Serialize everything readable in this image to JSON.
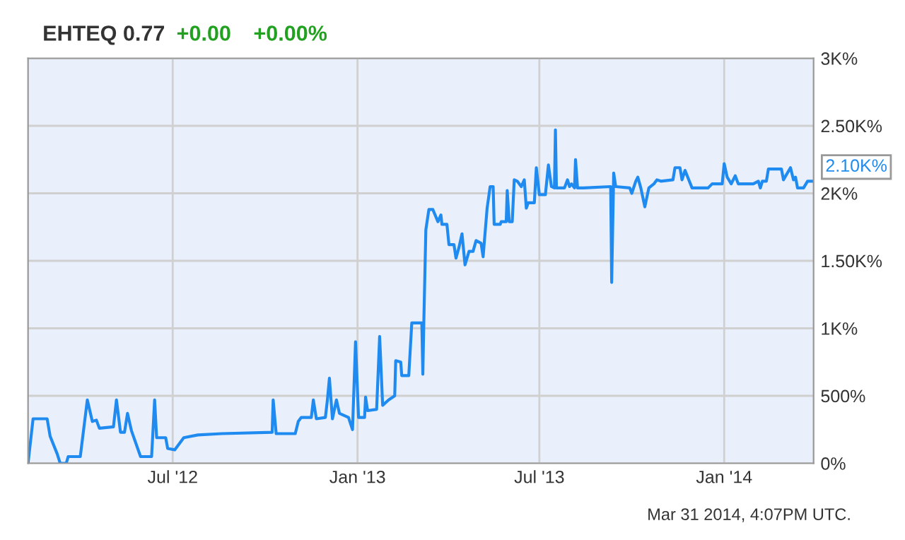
{
  "chart_data": {
    "type": "line",
    "title": "EHTEQ 0.77",
    "annotations": [
      "+0.00",
      "+0.00%",
      "Mar 31 2014, 4:07PM UTC.",
      {
        "text": "2.10K%",
        "x": "2014-03-31",
        "y": 2090
      }
    ],
    "series": [
      {
        "color": "#1f8bf0",
        "x": [
          "2012-02-08",
          "2012-02-13",
          "2012-02-27",
          "2012-03-01",
          "2012-03-08",
          "2012-03-11",
          "2012-03-17",
          "2012-03-19",
          "2012-03-31",
          "2012-04-07",
          "2012-04-12",
          "2012-04-16",
          "2012-04-19",
          "2012-05-03",
          "2012-05-06",
          "2012-05-10",
          "2012-05-14",
          "2012-05-17",
          "2012-05-21",
          "2012-05-30",
          "2012-06-10",
          "2012-06-13",
          "2012-06-15",
          "2012-06-24",
          "2012-06-26",
          "2012-07-03",
          "2012-07-12",
          "2012-07-26",
          "2012-08-19",
          "2012-10-08",
          "2012-10-09",
          "2012-10-12",
          "2012-10-31",
          "2012-11-03",
          "2012-11-06",
          "2012-11-16",
          "2012-11-18",
          "2012-11-21",
          "2012-11-30",
          "2012-12-02",
          "2012-12-04",
          "2012-12-07",
          "2012-12-11",
          "2012-12-14",
          "2012-12-23",
          "2012-12-27",
          "2012-12-30",
          "2013-01-02",
          "2013-01-08",
          "2013-01-09",
          "2013-01-11",
          "2013-01-20",
          "2013-01-23",
          "2013-01-26",
          "2013-02-01",
          "2013-02-07",
          "2013-02-08",
          "2013-02-13",
          "2013-02-14",
          "2013-02-21",
          "2013-02-24",
          "2013-03-06",
          "2013-03-07",
          "2013-03-08",
          "2013-03-10",
          "2013-03-13",
          "2013-03-17",
          "2013-03-22",
          "2013-03-25",
          "2013-03-26",
          "2013-03-31",
          "2013-04-02",
          "2013-04-07",
          "2013-04-09",
          "2013-04-12",
          "2013-04-15",
          "2013-04-18",
          "2013-04-22",
          "2013-04-26",
          "2013-04-29",
          "2013-05-04",
          "2013-05-06",
          "2013-05-10",
          "2013-05-13",
          "2013-05-16",
          "2013-05-17",
          "2013-05-23",
          "2013-05-24",
          "2013-05-29",
          "2013-05-30",
          "2013-06-01",
          "2013-06-04",
          "2013-06-06",
          "2013-06-09",
          "2013-06-13",
          "2013-06-16",
          "2013-06-18",
          "2013-06-20",
          "2013-06-26",
          "2013-06-28",
          "2013-07-01",
          "2013-07-07",
          "2013-07-10",
          "2013-07-13",
          "2013-07-16",
          "2013-07-17",
          "2013-07-18",
          "2013-07-26",
          "2013-07-29",
          "2013-07-31",
          "2013-08-02",
          "2013-08-05",
          "2013-08-06",
          "2013-08-08",
          "2013-08-14",
          "2013-09-10",
          "2013-09-11",
          "2013-09-13",
          "2013-09-15",
          "2013-09-29",
          "2013-10-01",
          "2013-10-05",
          "2013-10-07",
          "2013-10-10",
          "2013-10-14",
          "2013-10-18",
          "2013-10-23",
          "2013-10-26",
          "2013-10-30",
          "2013-11-11",
          "2013-11-13",
          "2013-11-18",
          "2013-11-20",
          "2013-11-23",
          "2013-11-30",
          "2013-12-16",
          "2013-12-20",
          "2013-12-30",
          "2014-01-01",
          "2014-01-04",
          "2014-01-08",
          "2014-01-12",
          "2014-01-15",
          "2014-01-30",
          "2014-02-04",
          "2014-02-06",
          "2014-02-08",
          "2014-02-12",
          "2014-02-14",
          "2014-02-27",
          "2014-03-01",
          "2014-03-08",
          "2014-03-11",
          "2014-03-13",
          "2014-03-15",
          "2014-03-21",
          "2014-03-25",
          "2014-03-31"
        ],
        "values": [
          0,
          330,
          330,
          200,
          70,
          0,
          0,
          50,
          50,
          470,
          310,
          320,
          260,
          270,
          470,
          230,
          230,
          370,
          240,
          50,
          50,
          470,
          190,
          190,
          110,
          100,
          190,
          210,
          220,
          230,
          470,
          220,
          220,
          310,
          340,
          340,
          470,
          330,
          340,
          470,
          630,
          330,
          470,
          370,
          340,
          250,
          900,
          340,
          340,
          490,
          390,
          400,
          940,
          430,
          470,
          500,
          760,
          750,
          650,
          650,
          1040,
          1040,
          660,
          1050,
          1730,
          1880,
          1880,
          1790,
          1840,
          1770,
          1770,
          1620,
          1620,
          1520,
          1600,
          1700,
          1470,
          1570,
          1570,
          1650,
          1630,
          1530,
          1890,
          2050,
          2050,
          1770,
          1770,
          1790,
          1790,
          2020,
          1790,
          1790,
          2100,
          2090,
          2050,
          2100,
          1890,
          1930,
          1930,
          2190,
          1990,
          1990,
          2210,
          2050,
          2040,
          2470,
          2040,
          2040,
          2100,
          2050,
          2070,
          2040,
          2250,
          2040,
          2040,
          2050,
          1340,
          2150,
          2050,
          2040,
          2000,
          2090,
          2120,
          2040,
          1900,
          2040,
          2070,
          2100,
          2090,
          2100,
          2190,
          2190,
          2100,
          2170,
          2040,
          2040,
          2070,
          2070,
          2220,
          2120,
          2070,
          2130,
          2070,
          2070,
          2090,
          2040,
          2090,
          2090,
          2180,
          2180,
          2100,
          2190,
          2100,
          2120,
          2040,
          2040,
          2090,
          2090
        ]
      }
    ],
    "xlim": [
      "2012-02-08",
      "2014-03-31"
    ],
    "xticks": [
      {
        "value": "2012-07-01",
        "label": "Jul '12"
      },
      {
        "value": "2013-01-01",
        "label": "Jan '13"
      },
      {
        "value": "2013-07-01",
        "label": "Jul '13"
      },
      {
        "value": "2014-01-01",
        "label": "Jan '14"
      }
    ],
    "ylim": [
      0,
      3000
    ],
    "yticks": [
      {
        "value": 0,
        "label": "0%"
      },
      {
        "value": 500,
        "label": "500%"
      },
      {
        "value": 1000,
        "label": "1K%"
      },
      {
        "value": 1500,
        "label": "1.50K%"
      },
      {
        "value": 2000,
        "label": "2K%"
      },
      {
        "value": 2500,
        "label": "2.50K%"
      },
      {
        "value": 3000,
        "label": "3K%"
      }
    ],
    "grid": true
  }
}
